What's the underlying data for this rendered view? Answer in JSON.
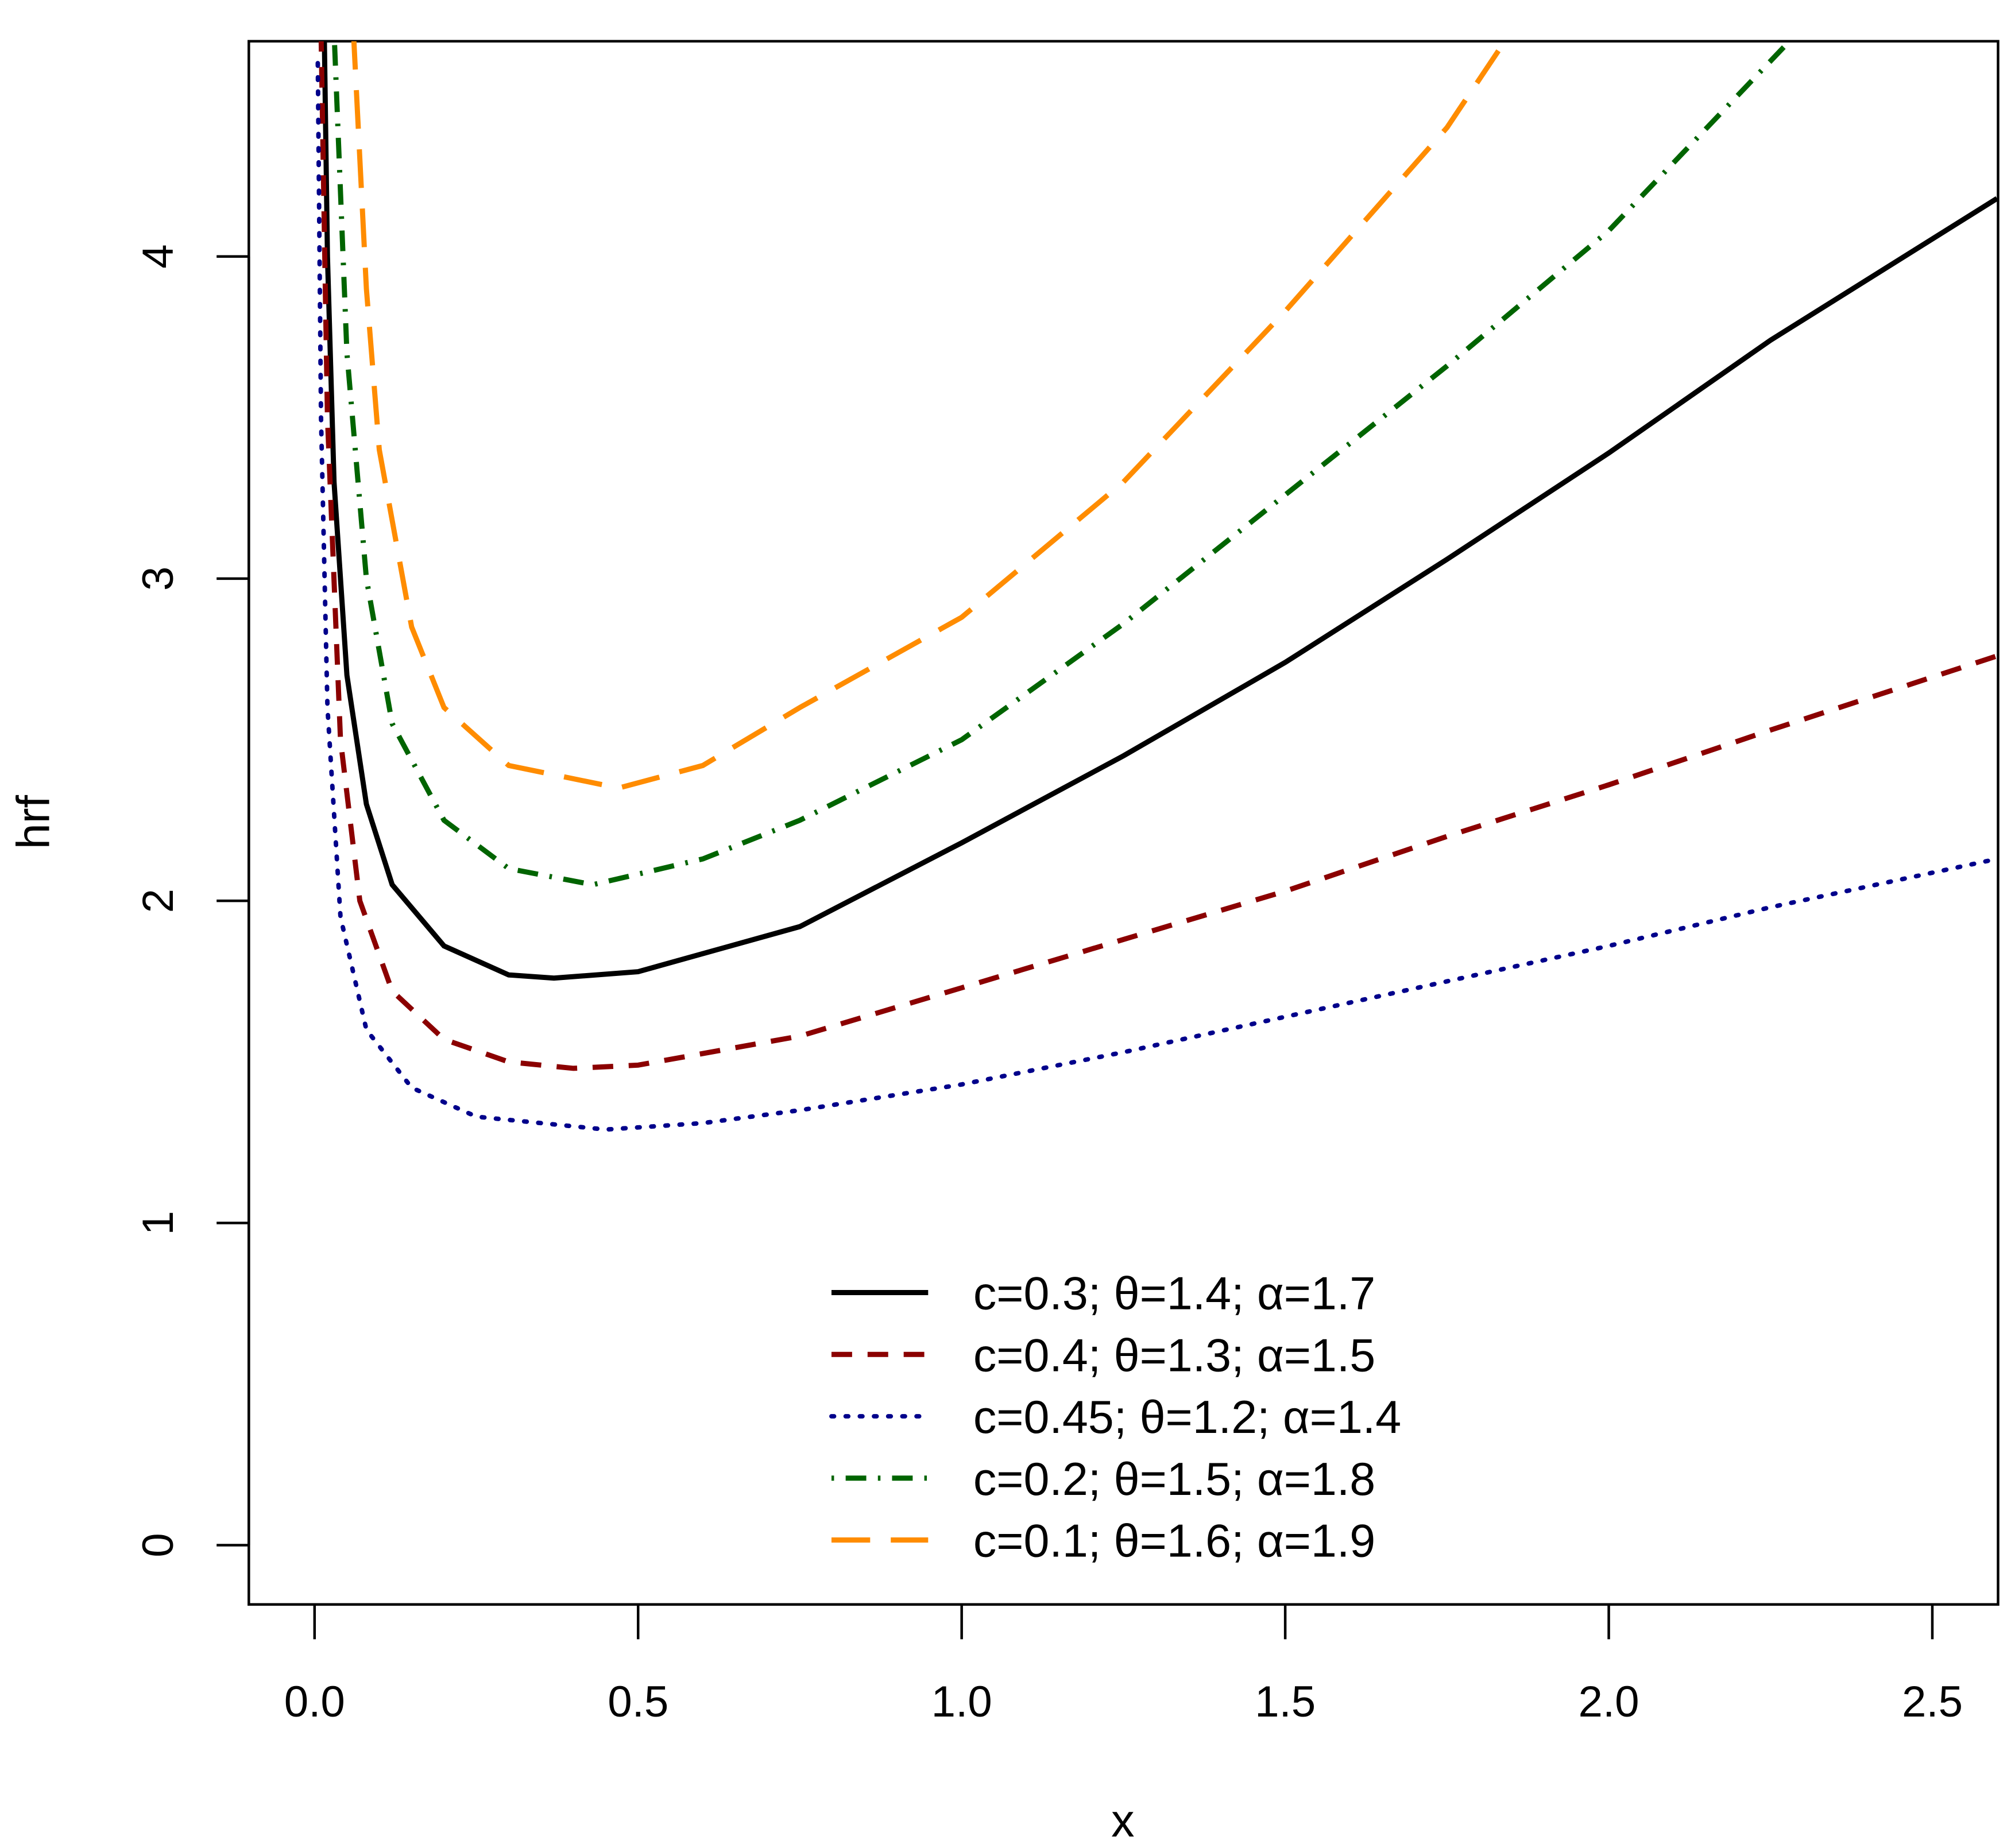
{
  "chart_data": {
    "type": "line",
    "title": "",
    "xlabel": "x",
    "ylabel": "hrf",
    "xlim": [
      -0.1,
      2.6
    ],
    "ylim": [
      -0.18,
      4.67
    ],
    "grid": false,
    "x_ticks": [
      "0.0",
      "0.5",
      "1.0",
      "1.5",
      "2.0",
      "2.5"
    ],
    "x_tick_values": [
      0,
      0.5,
      1.0,
      1.5,
      2.0,
      2.5
    ],
    "y_ticks": [
      "0",
      "1",
      "2",
      "3",
      "4"
    ],
    "y_tick_values": [
      0,
      1,
      2,
      3,
      4
    ],
    "legend_position": "bottom-center",
    "series": [
      {
        "name": "c=0.3; θ=1.4; α=1.7",
        "color": "#000000",
        "style": "solid",
        "x": [
          0.015,
          0.02,
          0.03,
          0.05,
          0.08,
          0.12,
          0.2,
          0.3,
          0.37,
          0.5,
          0.75,
          1.0,
          1.25,
          1.5,
          1.75,
          2.0,
          2.25,
          2.6
        ],
        "y": [
          4.7,
          4.0,
          3.3,
          2.7,
          2.3,
          2.05,
          1.86,
          1.77,
          1.76,
          1.78,
          1.92,
          2.18,
          2.45,
          2.74,
          3.06,
          3.39,
          3.74,
          4.18
        ]
      },
      {
        "name": "c=0.4; θ=1.3; α=1.5",
        "color": "#8B0000",
        "style": "dashed",
        "x": [
          0.01,
          0.02,
          0.04,
          0.07,
          0.12,
          0.2,
          0.3,
          0.4,
          0.5,
          0.75,
          1.0,
          1.25,
          1.5,
          1.75,
          2.0,
          2.25,
          2.6
        ],
        "y": [
          4.7,
          3.5,
          2.5,
          2.0,
          1.72,
          1.57,
          1.5,
          1.48,
          1.49,
          1.58,
          1.73,
          1.88,
          2.03,
          2.2,
          2.36,
          2.53,
          2.76
        ]
      },
      {
        "name": "c=0.45; θ=1.2; α=1.4",
        "color": "#00008B",
        "style": "dotted",
        "x": [
          0.005,
          0.01,
          0.02,
          0.04,
          0.08,
          0.15,
          0.25,
          0.45,
          0.6,
          0.75,
          1.0,
          1.25,
          1.5,
          1.75,
          2.0,
          2.25,
          2.6
        ],
        "y": [
          4.6,
          3.5,
          2.6,
          1.95,
          1.6,
          1.42,
          1.33,
          1.29,
          1.31,
          1.35,
          1.43,
          1.53,
          1.64,
          1.75,
          1.86,
          1.98,
          2.13
        ]
      },
      {
        "name": "c=0.2; θ=1.5; α=1.8",
        "color": "#006400",
        "style": "dotdash",
        "x": [
          0.03,
          0.05,
          0.08,
          0.12,
          0.2,
          0.3,
          0.43,
          0.6,
          0.75,
          1.0,
          1.25,
          1.5,
          1.75,
          2.0,
          2.28
        ],
        "y": [
          4.7,
          3.7,
          3.0,
          2.55,
          2.25,
          2.1,
          2.05,
          2.13,
          2.25,
          2.5,
          2.86,
          3.26,
          3.66,
          4.08,
          4.67
        ]
      },
      {
        "name": "c=0.1; θ=1.6; α=1.9",
        "color": "#FF8C00",
        "style": "longdash",
        "x": [
          0.06,
          0.08,
          0.1,
          0.15,
          0.2,
          0.3,
          0.47,
          0.6,
          0.75,
          1.0,
          1.25,
          1.5,
          1.75,
          1.84
        ],
        "y": [
          4.7,
          3.9,
          3.4,
          2.85,
          2.6,
          2.42,
          2.35,
          2.42,
          2.6,
          2.88,
          3.3,
          3.83,
          4.4,
          4.67
        ]
      }
    ]
  }
}
